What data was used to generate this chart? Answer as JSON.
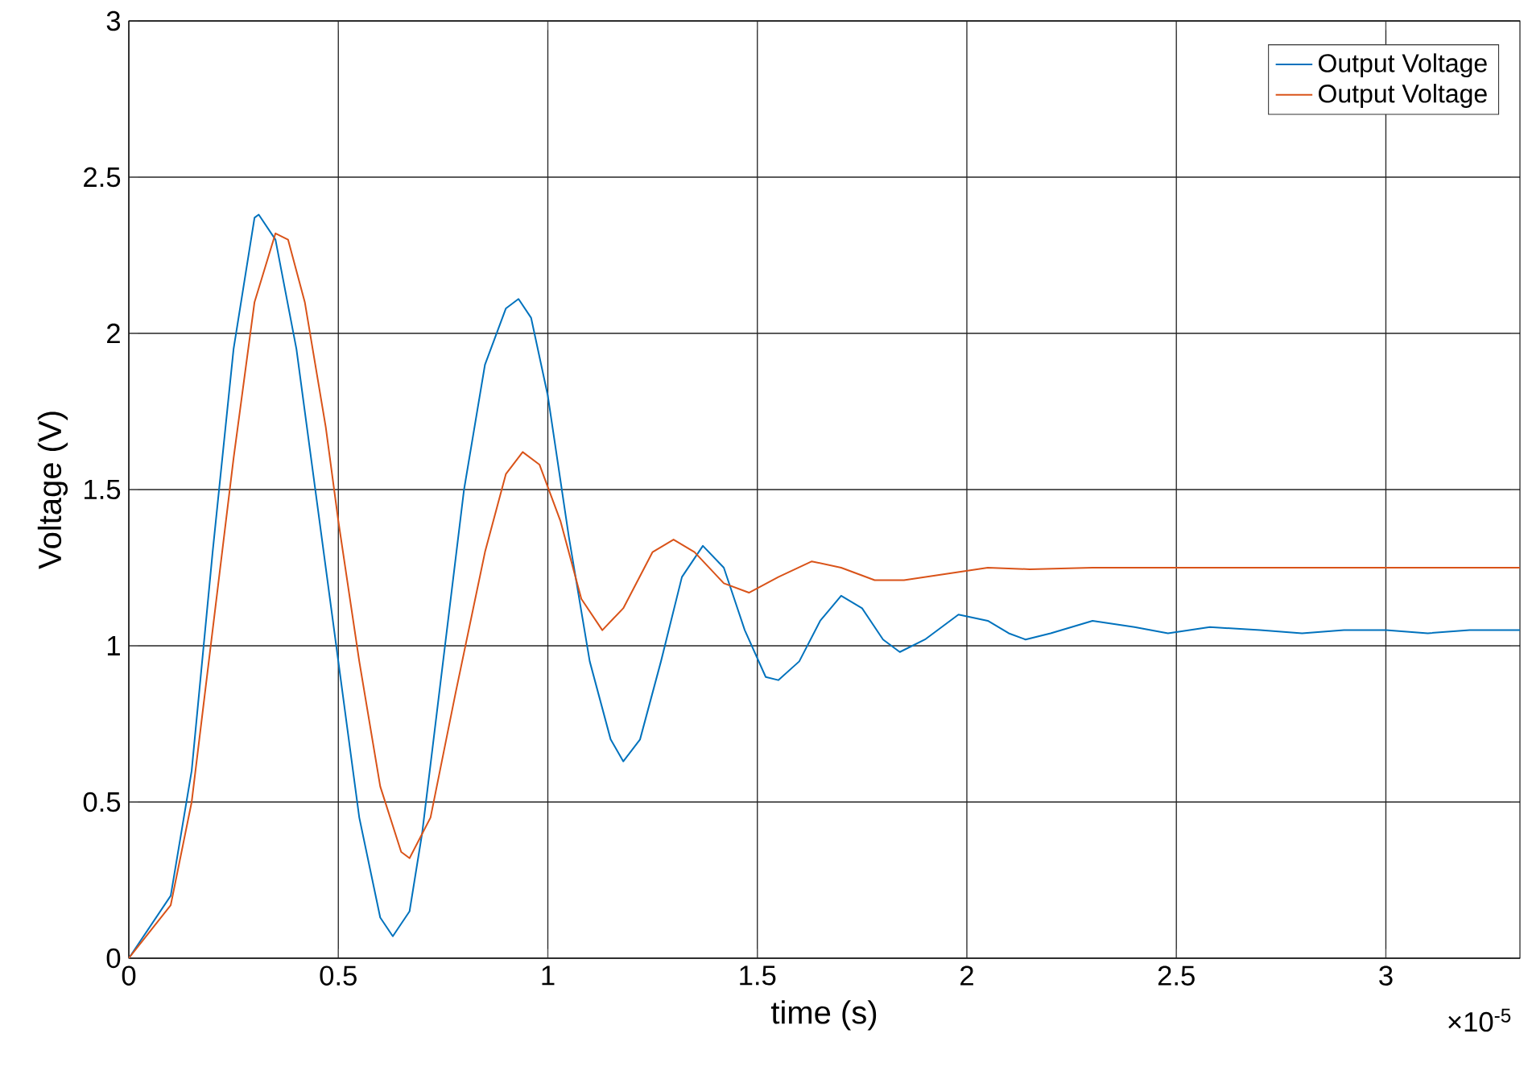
{
  "chart_data": {
    "type": "line",
    "xlabel": "time (s)",
    "ylabel": "Voltage (V)",
    "annotations": [
      "×10$^{-5}$"
    ],
    "xlim": [
      0,
      3.32
    ],
    "ylim": [
      0,
      3
    ],
    "xticks": [
      0,
      0.5,
      1,
      1.5,
      2,
      2.5,
      3
    ],
    "yticks": [
      0,
      0.5,
      1,
      1.5,
      2,
      2.5,
      3
    ],
    "grid": true,
    "legend": "top right",
    "series": [
      {
        "name": "Output Voltage",
        "color": "#0072bd",
        "x": [
          0,
          0.1,
          0.15,
          0.2,
          0.25,
          0.3,
          0.31,
          0.35,
          0.4,
          0.45,
          0.5,
          0.55,
          0.6,
          0.63,
          0.67,
          0.7,
          0.75,
          0.8,
          0.85,
          0.9,
          0.93,
          0.96,
          1.0,
          1.05,
          1.1,
          1.15,
          1.18,
          1.22,
          1.27,
          1.32,
          1.37,
          1.42,
          1.47,
          1.52,
          1.55,
          1.6,
          1.65,
          1.7,
          1.75,
          1.8,
          1.84,
          1.9,
          1.98,
          2.05,
          2.1,
          2.14,
          2.2,
          2.3,
          2.4,
          2.48,
          2.58,
          2.7,
          2.8,
          2.9,
          3.0,
          3.1,
          3.2,
          3.32
        ],
        "values": [
          0,
          0.2,
          0.6,
          1.3,
          1.95,
          2.37,
          2.38,
          2.3,
          1.95,
          1.45,
          0.95,
          0.45,
          0.13,
          0.07,
          0.15,
          0.4,
          0.95,
          1.5,
          1.9,
          2.08,
          2.11,
          2.05,
          1.8,
          1.35,
          0.95,
          0.7,
          0.63,
          0.7,
          0.95,
          1.22,
          1.32,
          1.25,
          1.05,
          0.9,
          0.89,
          0.95,
          1.08,
          1.16,
          1.12,
          1.02,
          0.98,
          1.02,
          1.1,
          1.08,
          1.04,
          1.02,
          1.04,
          1.08,
          1.06,
          1.04,
          1.06,
          1.05,
          1.04,
          1.05,
          1.05,
          1.04,
          1.05,
          1.05
        ]
      },
      {
        "name": "Output Voltage",
        "color": "#d95319",
        "x": [
          0,
          0.1,
          0.15,
          0.2,
          0.25,
          0.3,
          0.35,
          0.38,
          0.42,
          0.47,
          0.5,
          0.55,
          0.6,
          0.65,
          0.67,
          0.72,
          0.78,
          0.85,
          0.9,
          0.94,
          0.98,
          1.03,
          1.08,
          1.13,
          1.18,
          1.25,
          1.3,
          1.35,
          1.42,
          1.48,
          1.55,
          1.63,
          1.7,
          1.78,
          1.85,
          1.95,
          2.05,
          2.15,
          2.3,
          2.5,
          2.8,
          3.0,
          3.32
        ],
        "values": [
          0,
          0.17,
          0.5,
          1.05,
          1.6,
          2.1,
          2.32,
          2.3,
          2.1,
          1.7,
          1.4,
          0.95,
          0.55,
          0.34,
          0.32,
          0.45,
          0.85,
          1.3,
          1.55,
          1.62,
          1.58,
          1.4,
          1.15,
          1.05,
          1.12,
          1.3,
          1.34,
          1.3,
          1.2,
          1.17,
          1.22,
          1.27,
          1.25,
          1.21,
          1.21,
          1.23,
          1.25,
          1.245,
          1.25,
          1.25,
          1.25,
          1.25,
          1.25
        ]
      }
    ]
  }
}
